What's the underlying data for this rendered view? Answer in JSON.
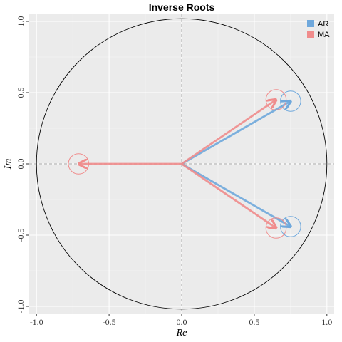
{
  "chart_data": {
    "type": "scatter",
    "title": "Inverse Roots",
    "xlabel": "Re",
    "ylabel": "Im",
    "xlim": [
      -1.05,
      1.05
    ],
    "ylim": [
      -1.05,
      1.05
    ],
    "x_ticks": [
      -1.0,
      -0.5,
      0.0,
      0.5,
      1.0
    ],
    "y_ticks": [
      -1.0,
      -0.5,
      0.0,
      0.5,
      1.0
    ],
    "x_tick_labels": [
      "-1.0",
      "-0.5",
      "0.0",
      "0.5",
      "1.0"
    ],
    "y_tick_labels": [
      "-1.0",
      "-0.5",
      "0.0",
      "0.5",
      "1.0"
    ],
    "grid": true,
    "unit_circle": true,
    "legend": {
      "position": "top-right"
    },
    "series": [
      {
        "name": "AR",
        "color": "#6FA8DC",
        "roots": [
          {
            "re": 0.75,
            "im": 0.44
          },
          {
            "re": 0.75,
            "im": -0.44
          }
        ]
      },
      {
        "name": "MA",
        "color": "#F08C8C",
        "roots": [
          {
            "re": 0.65,
            "im": 0.45
          },
          {
            "re": 0.65,
            "im": -0.45
          },
          {
            "re": -0.71,
            "im": 0.0
          }
        ]
      }
    ]
  }
}
